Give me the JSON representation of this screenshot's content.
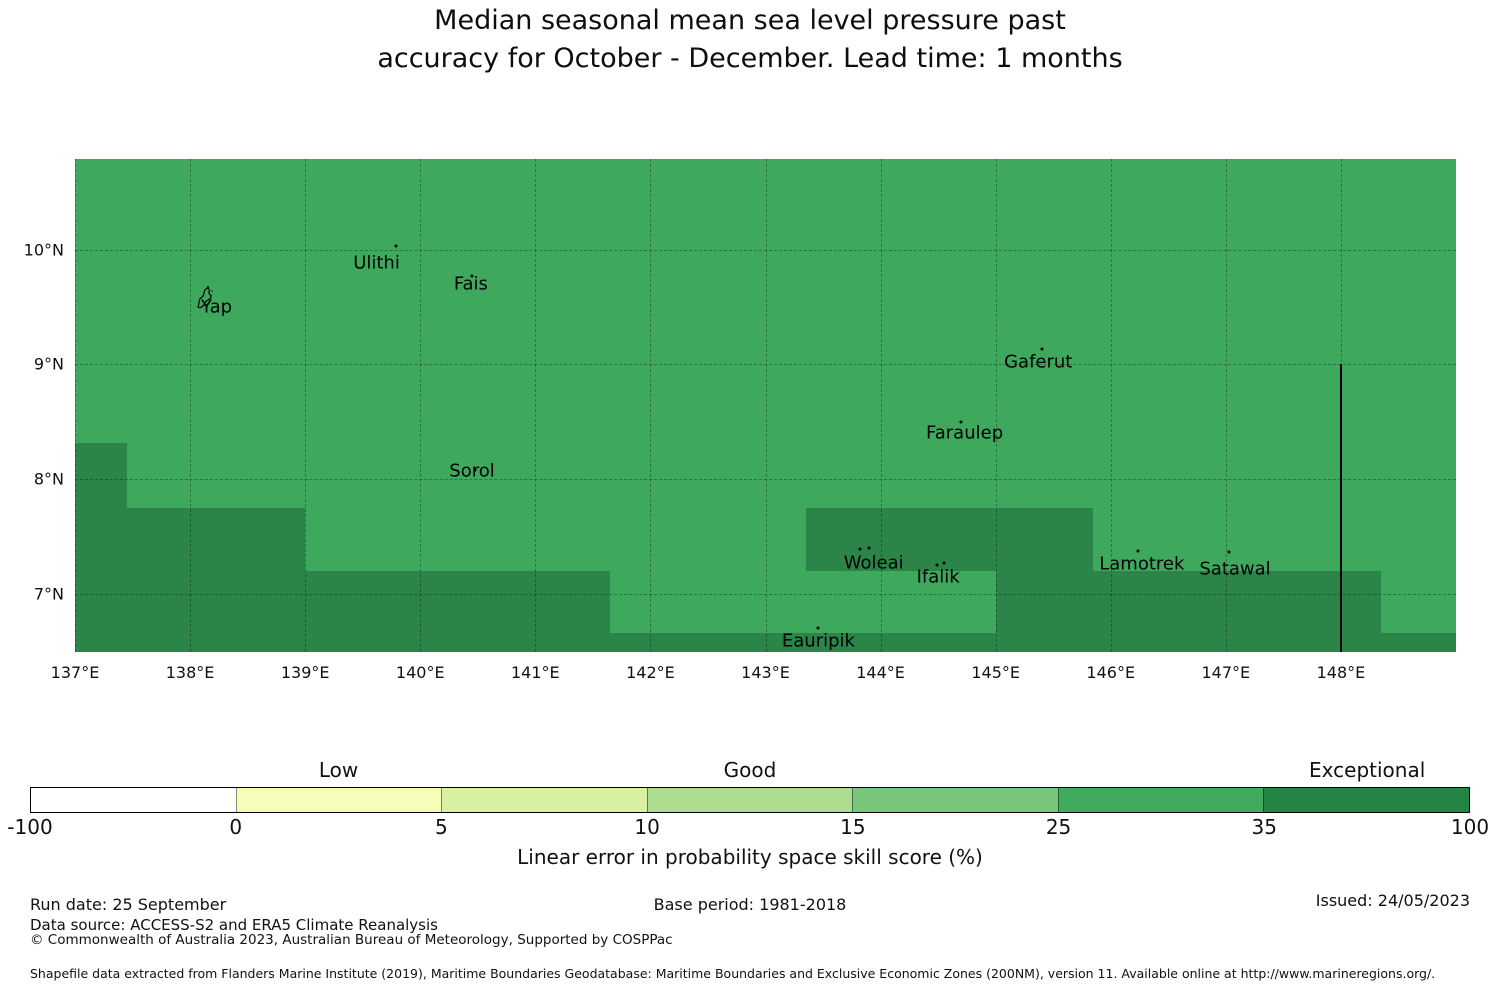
{
  "title": {
    "line1": "Median seasonal mean sea level pressure past",
    "line2": "accuracy for October - December. Lead time: 1 months"
  },
  "chart_data": {
    "type": "heatmap",
    "subtype": "categorical-skill-map",
    "extent": {
      "lon_min": 137,
      "lon_max": 149,
      "lat_min": 6.49,
      "lat_max": 10.79
    },
    "x_ticks": [
      {
        "label": "137°E",
        "lon": 137
      },
      {
        "label": "138°E",
        "lon": 138
      },
      {
        "label": "139°E",
        "lon": 139
      },
      {
        "label": "140°E",
        "lon": 140
      },
      {
        "label": "141°E",
        "lon": 141
      },
      {
        "label": "142°E",
        "lon": 142
      },
      {
        "label": "143°E",
        "lon": 143
      },
      {
        "label": "144°E",
        "lon": 144
      },
      {
        "label": "145°E",
        "lon": 145
      },
      {
        "label": "146°E",
        "lon": 146
      },
      {
        "label": "147°E",
        "lon": 147
      },
      {
        "label": "148°E",
        "lon": 148
      }
    ],
    "y_ticks": [
      {
        "label": "10°N",
        "lat": 10
      },
      {
        "label": "9°N",
        "lat": 9
      },
      {
        "label": "8°N",
        "lat": 8
      },
      {
        "label": "7°N",
        "lat": 7
      }
    ],
    "grid": {
      "lons": [
        137,
        138,
        139,
        140,
        141,
        142,
        143,
        144,
        145,
        146,
        147,
        148
      ],
      "lats": [
        10,
        9,
        8,
        7
      ]
    },
    "base_skill_bin": "25-35",
    "base_color": "#3EA85D",
    "high_skill_bin": "35-100",
    "high_skill_color": "#2B8448",
    "high_skill_regions": [
      {
        "lon_min": 137.0,
        "lon_max": 137.45,
        "lat_top": 8.31,
        "lat_bottom": 6.49
      },
      {
        "lon_min": 137.45,
        "lon_max": 139.0,
        "lat_top": 7.75,
        "lat_bottom": 6.49
      },
      {
        "lon_min": 139.0,
        "lon_max": 141.65,
        "lat_top": 7.2,
        "lat_bottom": 6.49
      },
      {
        "lon_min": 141.65,
        "lon_max": 145.0,
        "lat_top": 6.66,
        "lat_bottom": 6.49
      },
      {
        "lon_min": 143.35,
        "lon_max": 145.85,
        "lat_top": 7.75,
        "lat_bottom": 7.2
      },
      {
        "lon_min": 145.0,
        "lon_max": 148.35,
        "lat_top": 7.2,
        "lat_bottom": 6.49
      },
      {
        "lon_min": 148.35,
        "lon_max": 149.0,
        "lat_top": 6.66,
        "lat_bottom": 6.49
      }
    ],
    "eez_boundary_line": {
      "lon": 148,
      "lat_from": 9.0,
      "lat_to": 6.49,
      "color": "#000000"
    },
    "islands": [
      {
        "name": "Yap",
        "label_lon": 138.23,
        "label_lat": 9.5,
        "markers": [],
        "polygon_outline": {
          "lon": 138.14,
          "lat": 9.57
        }
      },
      {
        "name": "Ulithi",
        "label_lon": 139.62,
        "label_lat": 9.88,
        "markers": [
          {
            "lon": 139.79,
            "lat": 10.03
          }
        ]
      },
      {
        "name": "Fais",
        "label_lon": 140.44,
        "label_lat": 9.7,
        "markers": [
          {
            "lon": 140.45,
            "lat": 9.77
          }
        ]
      },
      {
        "name": "Sorol",
        "label_lon": 140.45,
        "label_lat": 8.07,
        "markers": [
          {
            "lon": 140.48,
            "lat": 8.08
          }
        ]
      },
      {
        "name": "Gaferut",
        "label_lon": 145.37,
        "label_lat": 9.02,
        "markers": [
          {
            "lon": 145.4,
            "lat": 9.13
          }
        ]
      },
      {
        "name": "Faraulep",
        "label_lon": 144.73,
        "label_lat": 8.4,
        "markers": [
          {
            "lon": 144.7,
            "lat": 8.5
          }
        ]
      },
      {
        "name": "Woleai",
        "label_lon": 143.94,
        "label_lat": 7.27,
        "markers": [
          {
            "lon": 143.82,
            "lat": 7.39
          },
          {
            "lon": 143.9,
            "lat": 7.4
          }
        ]
      },
      {
        "name": "Ifalik",
        "label_lon": 144.5,
        "label_lat": 7.14,
        "markers": [
          {
            "lon": 144.49,
            "lat": 7.25
          },
          {
            "lon": 144.55,
            "lat": 7.27
          }
        ]
      },
      {
        "name": "Lamotrek",
        "label_lon": 146.27,
        "label_lat": 7.26,
        "markers": [
          {
            "lon": 146.24,
            "lat": 7.37
          }
        ]
      },
      {
        "name": "Satawal",
        "label_lon": 147.08,
        "label_lat": 7.21,
        "markers": [
          {
            "lon": 147.03,
            "lat": 7.36
          }
        ]
      },
      {
        "name": "Eauripik",
        "label_lon": 143.46,
        "label_lat": 6.59,
        "markers": [
          {
            "lon": 143.46,
            "lat": 6.7
          }
        ]
      }
    ]
  },
  "colorbar": {
    "segments": [
      {
        "from": -100,
        "to": 0,
        "color": "#FFFFFF"
      },
      {
        "from": 0,
        "to": 5,
        "color": "#F7FCB9"
      },
      {
        "from": 5,
        "to": 10,
        "color": "#D9F0A3"
      },
      {
        "from": 10,
        "to": 15,
        "color": "#ADDD8E"
      },
      {
        "from": 15,
        "to": 25,
        "color": "#78C679"
      },
      {
        "from": 25,
        "to": 35,
        "color": "#41AB5D"
      },
      {
        "from": 35,
        "to": 100,
        "color": "#238443"
      }
    ],
    "tick_labels": [
      "-100",
      "0",
      "5",
      "10",
      "15",
      "25",
      "35",
      "100"
    ],
    "category_labels": [
      {
        "label": "Low",
        "segment_index": 1
      },
      {
        "label": "Good",
        "segment_index": 3
      },
      {
        "label": "Exceptional",
        "segment_index": 6
      }
    ],
    "axis_title": "Linear error in probability space skill score (%)"
  },
  "footer": {
    "run_date": "Run date: 25 September",
    "base_period": "Base period: 1981-2018",
    "issued": "Issued: 24/05/2023",
    "data_source": "Data source: ACCESS-S2 and ERA5 Climate Reanalysis",
    "copyright": "© Commonwealth of Australia 2023, Australian Bureau of Meteorology, Supported by COSPPac",
    "shapefile_note": "Shapefile data extracted from Flanders Marine Institute (2019), Maritime Boundaries Geodatabase: Maritime Boundaries and Exclusive Economic Zones (200NM), version 11. Available online at http://www.marineregions.org/."
  }
}
